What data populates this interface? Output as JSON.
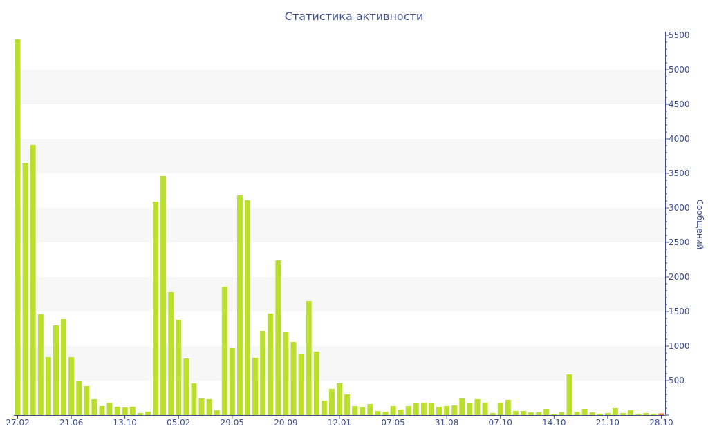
{
  "chart_data": {
    "type": "bar",
    "title": "Статистика активности",
    "ylabel": "Сообщений",
    "ylim": [
      0,
      5500
    ],
    "y_ticks": [
      500,
      1000,
      1500,
      2000,
      2500,
      3000,
      3500,
      4000,
      4500,
      5000,
      5500
    ],
    "x_tick_labels": [
      {
        "label": "27.02",
        "index": 0
      },
      {
        "label": "21.06",
        "index": 7
      },
      {
        "label": "13.10",
        "index": 14
      },
      {
        "label": "05.02",
        "index": 21
      },
      {
        "label": "29.05",
        "index": 28
      },
      {
        "label": "20.09",
        "index": 35
      },
      {
        "label": "12.01",
        "index": 42
      },
      {
        "label": "07.05",
        "index": 49
      },
      {
        "label": "31.08",
        "index": 56
      },
      {
        "label": "07.10",
        "index": 63
      },
      {
        "label": "14.10",
        "index": 70
      },
      {
        "label": "21.10",
        "index": 77
      },
      {
        "label": "28.10",
        "index": 84
      }
    ],
    "values": [
      5440,
      3650,
      3910,
      1460,
      840,
      1300,
      1390,
      840,
      490,
      420,
      230,
      130,
      180,
      120,
      110,
      120,
      30,
      50,
      3090,
      3460,
      1780,
      1380,
      820,
      460,
      240,
      230,
      70,
      1860,
      970,
      3180,
      3110,
      830,
      1220,
      1470,
      2240,
      1210,
      1060,
      890,
      1650,
      920,
      210,
      380,
      460,
      300,
      130,
      120,
      160,
      60,
      50,
      130,
      80,
      130,
      170,
      180,
      170,
      120,
      130,
      140,
      240,
      170,
      230,
      180,
      30,
      180,
      220,
      60,
      60,
      40,
      40,
      90,
      10,
      40,
      590,
      50,
      90,
      40,
      20,
      30,
      100,
      30,
      70,
      20,
      30,
      20,
      25
    ],
    "bar_color": "#badf2c",
    "last_bar_color": "#e07a3a",
    "grid": "alternating bands",
    "band_color": "#f7f7f7"
  }
}
